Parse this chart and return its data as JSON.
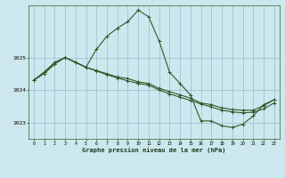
{
  "title": "Graphe pression niveau de la mer (hPa)",
  "bg_color": "#cce8ee",
  "grid_color": "#99bbcc",
  "line_color": "#2d5a27",
  "xlim": [
    -0.5,
    23.5
  ],
  "ylim": [
    1022.5,
    1026.6
  ],
  "yticks": [
    1023,
    1024,
    1025
  ],
  "xticks": [
    0,
    1,
    2,
    3,
    4,
    5,
    6,
    7,
    8,
    9,
    10,
    11,
    12,
    13,
    14,
    15,
    16,
    17,
    18,
    19,
    20,
    21,
    22,
    23
  ],
  "line1_x": [
    0,
    1,
    2,
    3,
    4,
    5,
    6,
    7,
    8,
    9,
    10,
    11,
    12,
    13,
    14,
    15,
    16,
    17,
    18,
    19,
    20,
    21,
    22,
    23
  ],
  "line1_y": [
    1024.3,
    1024.55,
    1024.8,
    1025.0,
    1024.85,
    1024.7,
    1025.25,
    1025.65,
    1025.9,
    1026.1,
    1026.45,
    1026.25,
    1025.5,
    1024.55,
    1024.2,
    1023.85,
    1023.05,
    1023.05,
    1022.9,
    1022.85,
    1022.95,
    1023.2,
    1023.55,
    1023.7
  ],
  "line2_x": [
    0,
    1,
    2,
    3,
    4,
    5,
    6,
    7,
    8,
    9,
    10,
    11,
    12,
    13,
    14,
    15,
    16,
    17,
    18,
    19,
    20,
    21,
    22,
    23
  ],
  "line2_y": [
    1024.3,
    1024.55,
    1024.85,
    1025.0,
    1024.85,
    1024.7,
    1024.6,
    1024.5,
    1024.4,
    1024.35,
    1024.25,
    1024.2,
    1024.05,
    1023.95,
    1023.85,
    1023.75,
    1023.6,
    1023.55,
    1023.45,
    1023.4,
    1023.38,
    1023.38,
    1023.52,
    1023.7
  ],
  "line3_x": [
    0,
    1,
    2,
    3,
    4,
    5,
    6,
    7,
    8,
    9,
    10,
    11,
    12,
    13,
    14,
    15,
    16,
    17,
    18,
    19,
    20,
    21,
    22,
    23
  ],
  "line3_y": [
    1024.3,
    1024.5,
    1024.8,
    1025.0,
    1024.85,
    1024.7,
    1024.58,
    1024.47,
    1024.37,
    1024.28,
    1024.2,
    1024.15,
    1024.0,
    1023.88,
    1023.78,
    1023.68,
    1023.57,
    1023.48,
    1023.38,
    1023.33,
    1023.3,
    1023.32,
    1023.42,
    1023.6
  ]
}
